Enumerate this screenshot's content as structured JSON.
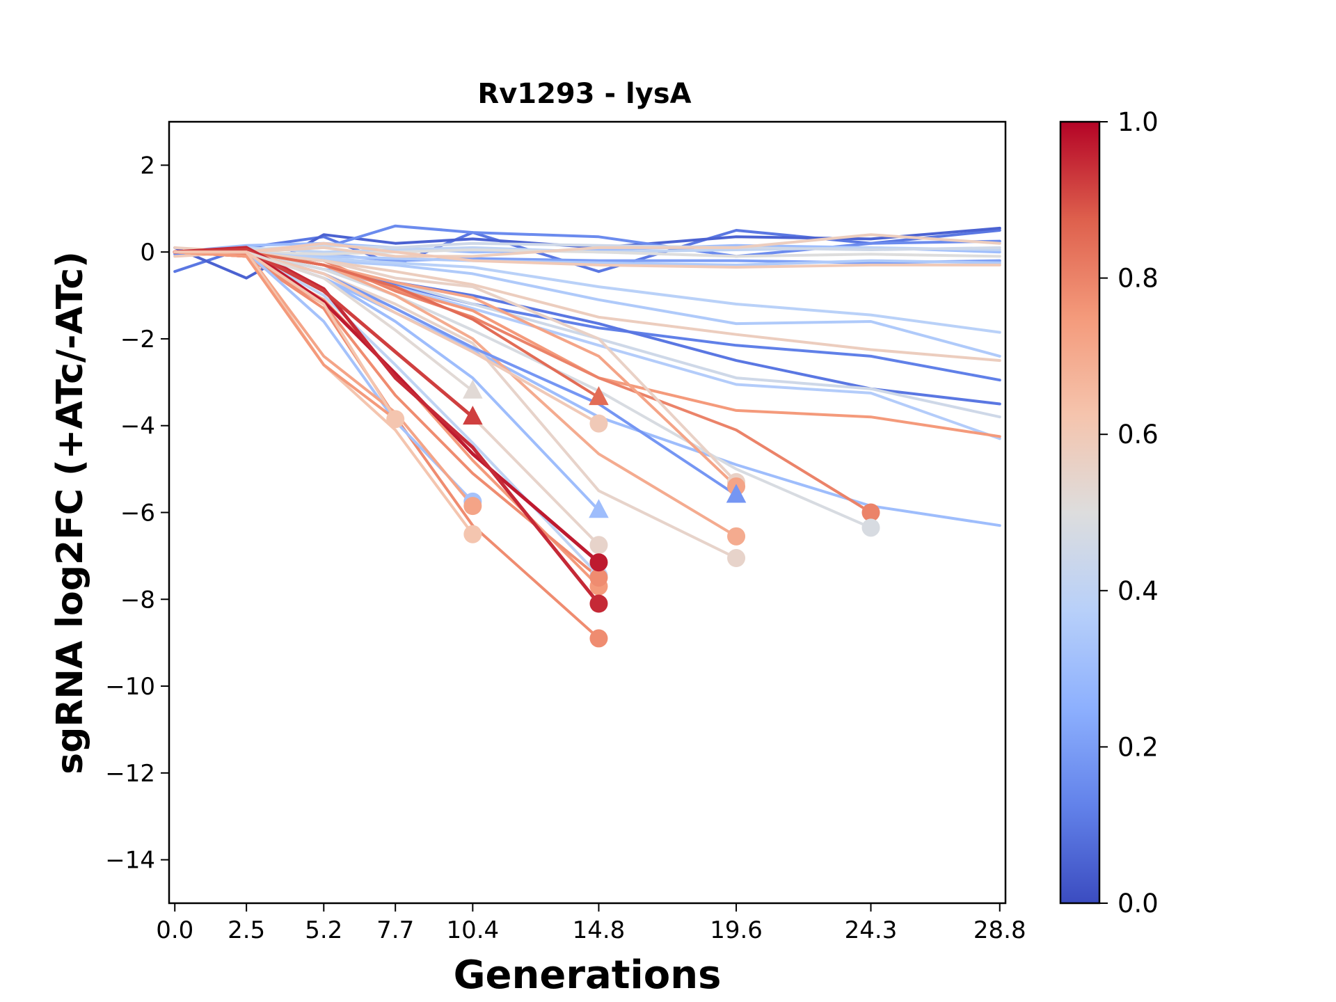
{
  "chart_data": {
    "type": "line",
    "title": "Rv1293 - lysA",
    "xlabel": "Generations",
    "ylabel": "sgRNA log2FC (+ATc/-ATc)",
    "xlim": [
      -0.2,
      29.0
    ],
    "ylim": [
      -15,
      3
    ],
    "x_ticks": [
      0.0,
      2.5,
      5.2,
      7.7,
      10.4,
      14.8,
      19.6,
      24.3,
      28.8
    ],
    "x_tick_labels": [
      "0.0",
      "2.5",
      "5.2",
      "7.7",
      "10.4",
      "14.8",
      "19.6",
      "24.3",
      "28.8"
    ],
    "y_ticks": [
      2,
      0,
      -2,
      -4,
      -6,
      -8,
      -10,
      -12,
      -14
    ],
    "y_tick_labels": [
      "2",
      "−2",
      "−4",
      "−6",
      "−8",
      "−10",
      "−12",
      "−14"
    ],
    "y_tick_labels_full": [
      "2",
      "0",
      "−2",
      "−4",
      "−6",
      "−8",
      "−10",
      "−12",
      "−14"
    ],
    "grid": false,
    "colorbar": {
      "colormap": "coolwarm",
      "range": [
        0.0,
        1.0
      ],
      "ticks": [
        0.0,
        0.2,
        0.4,
        0.6,
        0.8,
        1.0
      ],
      "tick_labels": [
        "0.0",
        "0.2",
        "0.4",
        "0.6",
        "0.8",
        "1.0"
      ]
    },
    "series": [
      {
        "c": 0.1,
        "x": [
          0,
          2.5,
          5.2,
          7.7,
          10.4,
          14.8,
          19.6,
          24.3,
          28.8
        ],
        "y": [
          -0.45,
          0.1,
          0.35,
          -0.3,
          0.45,
          -0.45,
          0.5,
          0.2,
          0.5
        ]
      },
      {
        "c": 0.05,
        "x": [
          0,
          2.5,
          5.2,
          7.7,
          10.4,
          14.8,
          19.6,
          24.3,
          28.8
        ],
        "y": [
          0.1,
          -0.6,
          0.4,
          0.2,
          0.3,
          0.1,
          0.35,
          0.3,
          0.55
        ]
      },
      {
        "c": 0.15,
        "x": [
          0,
          2.5,
          5.2,
          7.7,
          10.4,
          14.8,
          19.6,
          24.3,
          28.8
        ],
        "y": [
          -0.05,
          0.05,
          0.1,
          0.6,
          0.45,
          0.35,
          -0.1,
          0.2,
          0.25
        ]
      },
      {
        "c": 0.2,
        "x": [
          0,
          2.5,
          5.2,
          7.7,
          10.4,
          14.8,
          19.6,
          24.3,
          28.8
        ],
        "y": [
          0.0,
          -0.1,
          -0.05,
          -0.2,
          -0.15,
          -0.2,
          -0.2,
          -0.25,
          -0.2
        ]
      },
      {
        "c": 0.3,
        "x": [
          0,
          2.5,
          5.2,
          7.7,
          10.4,
          14.8,
          19.6,
          24.3,
          28.8
        ],
        "y": [
          0.0,
          0.15,
          0.2,
          0.1,
          0.0,
          0.05,
          0.15,
          0.1,
          0.0
        ]
      },
      {
        "c": 0.35,
        "x": [
          0,
          2.5,
          5.2,
          7.7,
          10.4,
          14.8,
          19.6,
          24.3,
          28.8
        ],
        "y": [
          0.0,
          -0.05,
          -0.1,
          -0.15,
          -0.2,
          -0.25,
          -0.3,
          -0.2,
          -0.25
        ]
      },
      {
        "c": 0.4,
        "x": [
          0,
          2.5,
          5.2,
          7.7,
          10.4,
          14.8,
          19.6,
          24.3,
          28.8
        ],
        "y": [
          0.0,
          0.1,
          0.0,
          0.05,
          0.1,
          0.0,
          0.05,
          0.1,
          0.05
        ]
      },
      {
        "c": 0.45,
        "x": [
          0,
          2.5,
          5.2,
          7.7,
          10.4,
          14.8,
          19.6,
          24.3,
          28.8
        ],
        "y": [
          0.0,
          0.05,
          0.15,
          0.1,
          0.2,
          0.15,
          0.1,
          0.05,
          0.1
        ]
      },
      {
        "c": 0.5,
        "x": [
          0,
          2.5,
          5.2,
          7.7,
          10.4,
          14.8,
          19.6,
          24.3,
          28.8
        ],
        "y": [
          0.0,
          0.0,
          -0.05,
          0.0,
          0.05,
          0.0,
          -0.1,
          -0.05,
          -0.1
        ]
      },
      {
        "c": 0.58,
        "x": [
          0,
          2.5,
          5.2,
          7.7,
          10.4,
          14.8,
          19.6,
          24.3,
          28.8
        ],
        "y": [
          0.1,
          0.0,
          0.1,
          -0.1,
          -0.1,
          0.1,
          0.1,
          0.4,
          0.2
        ]
      },
      {
        "c": 0.6,
        "x": [
          0,
          2.5,
          5.2,
          7.7,
          10.4,
          14.8,
          19.6,
          24.3,
          28.8
        ],
        "y": [
          -0.1,
          0.0,
          0.2,
          0.0,
          -0.2,
          -0.3,
          -0.35,
          -0.3,
          -0.3
        ]
      },
      {
        "c": 0.35,
        "x": [
          0,
          2.5,
          5.2,
          7.7,
          10.4,
          14.8,
          19.6,
          24.3,
          28.8
        ],
        "y": [
          0.0,
          0.0,
          -0.2,
          -0.3,
          -0.5,
          -1.1,
          -1.65,
          -1.6,
          -2.4
        ]
      },
      {
        "c": 0.38,
        "x": [
          0,
          2.5,
          5.2,
          7.7,
          10.4,
          14.8,
          19.6,
          24.3,
          28.8
        ],
        "y": [
          0.0,
          0.0,
          -0.15,
          -0.25,
          -0.35,
          -0.8,
          -1.2,
          -1.45,
          -1.85
        ]
      },
      {
        "c": 0.58,
        "x": [
          0,
          2.5,
          5.2,
          7.7,
          10.4,
          14.8,
          19.6,
          24.3,
          28.8
        ],
        "y": [
          0.0,
          -0.1,
          -0.2,
          -0.45,
          -0.75,
          -1.5,
          -1.9,
          -2.25,
          -2.5
        ]
      },
      {
        "c": 0.12,
        "x": [
          0,
          2.5,
          5.2,
          7.7,
          10.4,
          14.8,
          19.6,
          24.3,
          28.8
        ],
        "y": [
          0.0,
          0.0,
          -0.3,
          -0.75,
          -1.2,
          -1.75,
          -2.15,
          -2.4,
          -2.95
        ]
      },
      {
        "c": 0.1,
        "x": [
          0,
          2.5,
          5.2,
          7.7,
          10.4,
          14.8,
          19.6,
          24.3,
          28.8
        ],
        "y": [
          0.0,
          0.0,
          -0.4,
          -0.7,
          -1.0,
          -1.65,
          -2.5,
          -3.15,
          -3.5
        ]
      },
      {
        "c": 0.36,
        "x": [
          0,
          2.5,
          5.2,
          7.7,
          10.4,
          14.8,
          19.6,
          24.3,
          28.8
        ],
        "y": [
          0.0,
          0.0,
          -0.4,
          -0.8,
          -1.3,
          -2.15,
          -3.05,
          -3.25,
          -4.3
        ]
      },
      {
        "c": 0.45,
        "x": [
          0,
          2.5,
          5.2,
          7.7,
          10.4,
          14.8,
          19.6,
          24.3,
          28.8
        ],
        "y": [
          0.0,
          0.0,
          -0.3,
          -0.7,
          -1.2,
          -2.0,
          -2.9,
          -3.15,
          -3.8
        ]
      },
      {
        "c": 0.75,
        "x": [
          0,
          2.5,
          5.2,
          7.7,
          10.4,
          14.8,
          19.6,
          24.3,
          28.8
        ],
        "y": [
          0.0,
          0.0,
          -0.3,
          -0.85,
          -1.35,
          -2.9,
          -3.65,
          -3.8,
          -4.25
        ]
      },
      {
        "c": 0.3,
        "x": [
          0,
          2.5,
          5.2,
          7.7,
          10.4,
          14.8,
          19.6,
          24.3,
          28.8
        ],
        "y": [
          0.0,
          0.0,
          -0.6,
          -1.4,
          -2.25,
          -3.8,
          -4.9,
          -5.85,
          -6.3
        ]
      },
      {
        "c": 0.8,
        "x": [
          0,
          2.5,
          5.2,
          7.7,
          10.4,
          14.8,
          19.6,
          24.3
        ],
        "y": [
          0.0,
          -0.05,
          -0.2,
          -0.9,
          -1.5,
          -2.9,
          -4.1,
          -6.0
        ],
        "end": "circle"
      },
      {
        "c": 0.48,
        "x": [
          0,
          2.5,
          5.2,
          7.7,
          10.4,
          14.8,
          19.6,
          24.3
        ],
        "y": [
          0.0,
          0.0,
          -0.4,
          -1.0,
          -1.8,
          -3.2,
          -5.0,
          -6.35
        ],
        "end": "circle"
      },
      {
        "c": 0.7,
        "x": [
          0,
          2.5,
          5.2,
          7.7,
          10.4,
          14.8,
          19.6
        ],
        "y": [
          0.0,
          0.0,
          -0.3,
          -1.0,
          -2.0,
          -4.65,
          -6.55
        ],
        "end": "circle"
      },
      {
        "c": 0.56,
        "x": [
          0,
          2.5,
          5.2,
          7.7,
          10.4,
          14.8,
          19.6
        ],
        "y": [
          0.0,
          0.0,
          -0.2,
          -0.6,
          -0.8,
          -2.0,
          -5.3
        ],
        "end": "circle"
      },
      {
        "c": 0.72,
        "x": [
          0,
          2.5,
          5.2,
          7.7,
          10.4,
          14.8,
          19.6
        ],
        "y": [
          0.0,
          0.0,
          -0.3,
          -0.7,
          -1.05,
          -2.4,
          -5.4
        ],
        "end": "circle"
      },
      {
        "c": 0.55,
        "x": [
          0,
          2.5,
          5.2,
          7.7,
          10.4,
          14.8,
          19.6
        ],
        "y": [
          0.0,
          0.0,
          -0.5,
          -1.2,
          -2.1,
          -5.5,
          -7.05
        ],
        "end": "circle"
      },
      {
        "c": 0.18,
        "x": [
          0,
          2.5,
          5.2,
          7.7,
          10.4,
          14.8,
          19.6
        ],
        "y": [
          0.0,
          0.0,
          -0.5,
          -1.3,
          -2.2,
          -3.5,
          -5.6
        ],
        "end": "triangle"
      },
      {
        "c": 0.85,
        "x": [
          0,
          2.5,
          5.2,
          7.7,
          10.4,
          14.8
        ],
        "y": [
          0.0,
          0.0,
          -0.3,
          -0.8,
          -1.55,
          -3.35
        ],
        "end": "triangle"
      },
      {
        "c": 0.3,
        "x": [
          0,
          2.5,
          5.2,
          7.7,
          10.4,
          14.8
        ],
        "y": [
          0.0,
          0.0,
          -0.6,
          -1.6,
          -2.9,
          -5.95
        ],
        "end": "triangle"
      },
      {
        "c": 0.6,
        "x": [
          0,
          2.5,
          5.2,
          7.7,
          10.4,
          14.8
        ],
        "y": [
          0.0,
          0.0,
          -0.5,
          -1.4,
          -2.3,
          -3.95
        ],
        "end": "circle"
      },
      {
        "c": 0.55,
        "x": [
          0,
          2.5,
          5.2,
          7.7,
          10.4,
          14.8
        ],
        "y": [
          0.0,
          0.0,
          -0.9,
          -2.3,
          -3.8,
          -6.75
        ],
        "end": "circle"
      },
      {
        "c": 0.75,
        "x": [
          0,
          2.5,
          5.2,
          7.7,
          10.4,
          14.8
        ],
        "y": [
          0.0,
          -0.1,
          -1.1,
          -2.8,
          -4.8,
          -7.7
        ],
        "end": "circle"
      },
      {
        "c": 0.4,
        "x": [
          0,
          2.5,
          5.2,
          7.7,
          10.4,
          14.8
        ],
        "y": [
          0.0,
          0.0,
          -1.0,
          -2.6,
          -4.4,
          -7.45
        ],
        "end": "circle"
      },
      {
        "c": 0.78,
        "x": [
          0,
          2.5,
          5.2,
          7.7,
          10.4,
          14.8
        ],
        "y": [
          0.0,
          -0.1,
          -1.2,
          -3.3,
          -5.1,
          -7.5
        ],
        "end": "circle"
      },
      {
        "c": 0.78,
        "x": [
          0,
          2.5,
          5.2,
          7.7,
          10.4,
          14.8
        ],
        "y": [
          0.0,
          -0.1,
          -1.3,
          -3.8,
          -6.3,
          -8.9
        ],
        "end": "circle"
      },
      {
        "c": 0.97,
        "x": [
          0,
          2.5,
          5.2,
          7.7,
          10.4,
          14.8
        ],
        "y": [
          0.0,
          0.05,
          -1.15,
          -2.8,
          -4.65,
          -7.15
        ],
        "end": "circle"
      },
      {
        "c": 0.95,
        "x": [
          0,
          2.5,
          5.2,
          7.7,
          10.4,
          14.8
        ],
        "y": [
          0.0,
          0.1,
          -0.85,
          -2.9,
          -4.5,
          -8.1
        ],
        "end": "circle"
      },
      {
        "c": 0.92,
        "x": [
          0,
          2.5,
          5.2,
          7.7,
          10.4
        ],
        "y": [
          0.0,
          0.05,
          -0.9,
          -2.3,
          -3.8
        ],
        "end": "triangle"
      },
      {
        "c": 0.52,
        "x": [
          0,
          2.5,
          5.2,
          7.7,
          10.4
        ],
        "y": [
          0.0,
          0.0,
          -0.6,
          -1.8,
          -3.2
        ],
        "end": "triangle"
      },
      {
        "c": 0.32,
        "x": [
          0,
          2.5,
          5.2,
          7.7,
          10.4
        ],
        "y": [
          0.0,
          0.0,
          -1.6,
          -3.9,
          -5.75
        ],
        "end": "circle"
      },
      {
        "c": 0.72,
        "x": [
          0,
          2.5,
          5.2,
          7.7,
          10.4
        ],
        "y": [
          0.0,
          0.0,
          -2.4,
          -3.7,
          -5.85
        ],
        "end": "circle"
      },
      {
        "c": 0.62,
        "x": [
          0,
          2.5,
          5.2,
          7.7,
          10.4
        ],
        "y": [
          0.0,
          0.0,
          -2.6,
          -4.1,
          -6.5
        ],
        "end": "circle"
      },
      {
        "c": 0.75,
        "x": [
          0,
          2.5,
          5.2,
          7.7
        ],
        "y": [
          0.0,
          -0.1,
          -2.6,
          -3.85
        ]
      },
      {
        "c": 0.62,
        "x": [
          0,
          2.5,
          5.2,
          7.7
        ],
        "y": [
          0.0,
          0.0,
          -1.2,
          -3.85
        ],
        "end": "circle"
      }
    ]
  }
}
